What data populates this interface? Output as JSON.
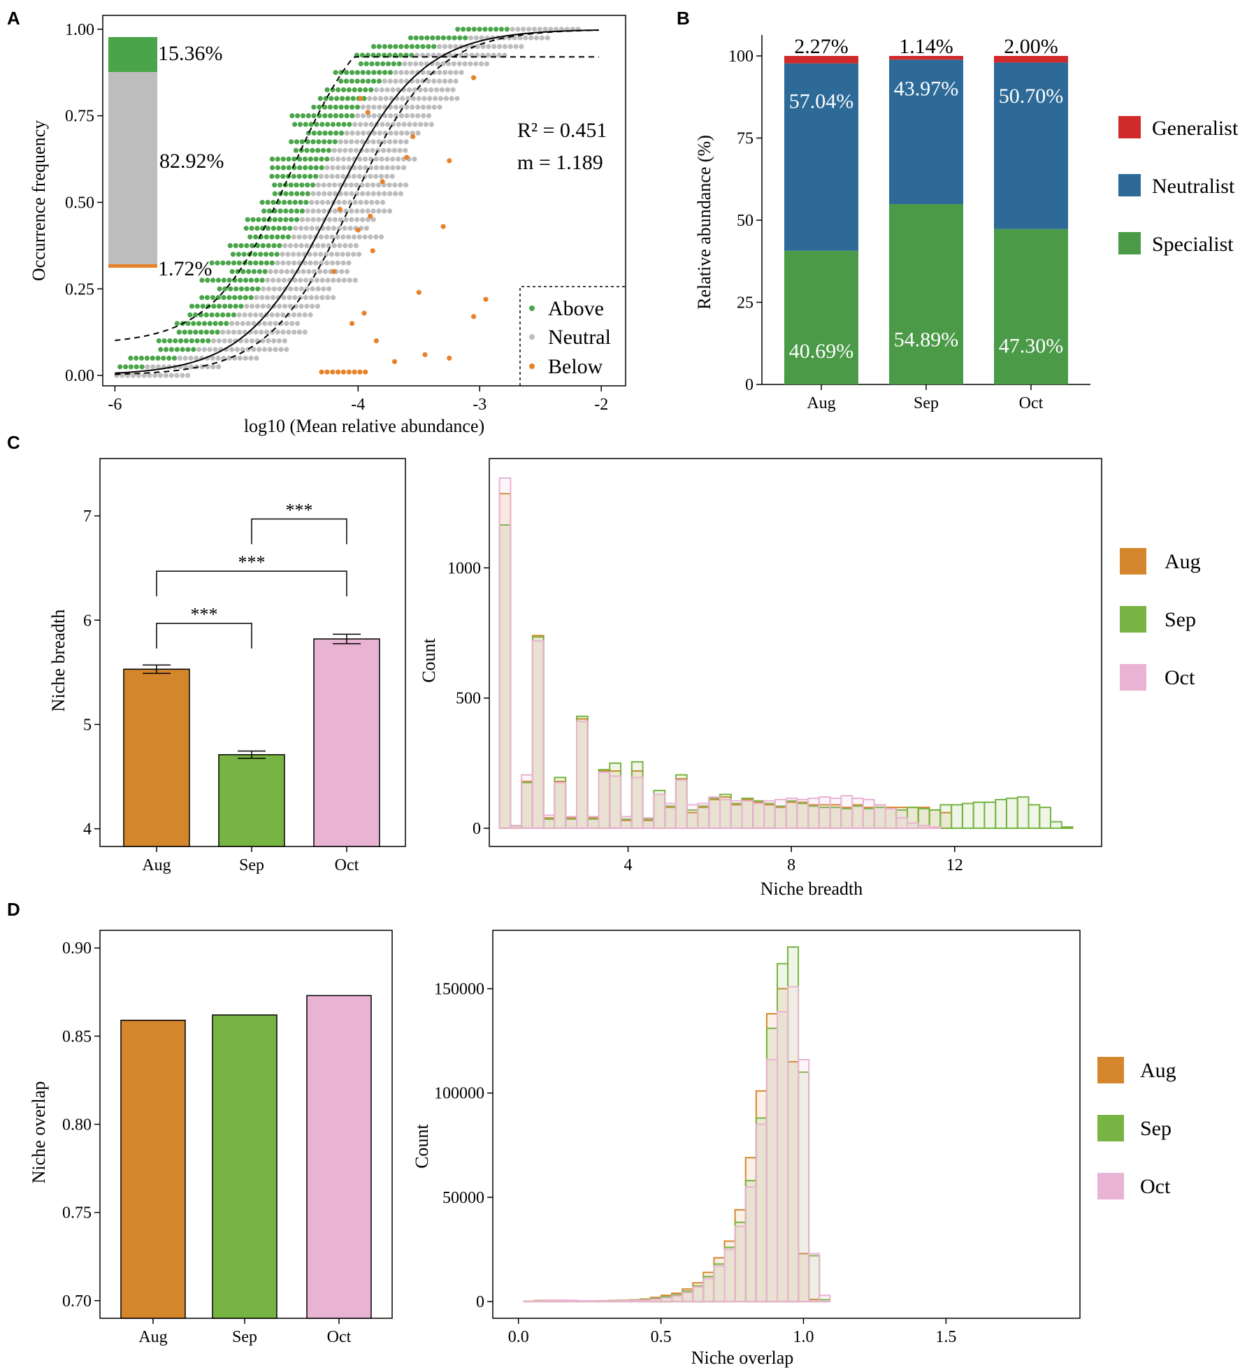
{
  "panels": {
    "a": "A",
    "b": "B",
    "c": "C",
    "d": "D"
  },
  "colors": {
    "above": "#4aa54a",
    "neutral": "#bdbdbd",
    "below": "#e8822a",
    "generalist": "#d12a2a",
    "neutralist": "#2e6a98",
    "specialist": "#4a9a48",
    "aug": "#d4862d",
    "sep": "#78b443",
    "oct": "#e9b3d3"
  },
  "chart_data": [
    {
      "id": "A",
      "type": "scatter",
      "xlabel": "log10 (Mean relative abundance)",
      "ylabel": "Occurrence frequency",
      "xlim": [
        -6.1,
        -1.8
      ],
      "ylim": [
        -0.03,
        1.04
      ],
      "x_ticks": [
        {
          "v": -6,
          "label": "-6"
        },
        {
          "v": -4,
          "label": "-4"
        },
        {
          "v": -3,
          "label": "-3"
        },
        {
          "v": -2,
          "label": "-2"
        }
      ],
      "y_ticks": [
        {
          "v": 0,
          "label": "0.00"
        },
        {
          "v": 0.25,
          "label": "0.25"
        },
        {
          "v": 0.5,
          "label": "0.50"
        },
        {
          "v": 0.75,
          "label": "0.75"
        },
        {
          "v": 1,
          "label": "1.00"
        }
      ],
      "fit": {
        "model": "sigmoid",
        "x0": -4.2,
        "scale": 0.36,
        "upper": 1.0,
        "dashed_low_x0": -4.05,
        "dashed_high_x0": -4.55,
        "dashed_high_cap": 0.92
      },
      "stats": {
        "r2": "R² = 0.451",
        "m": "m = 1.189"
      },
      "composition": [
        {
          "name": "Above",
          "value": 15.36,
          "label": "15.36%"
        },
        {
          "name": "Neutral",
          "value": 82.92,
          "label": "82.92%"
        },
        {
          "name": "Below",
          "value": 1.72,
          "label": "1.72%"
        }
      ],
      "legend": [
        "Above",
        "Neutral",
        "Below"
      ],
      "below_points": [
        [
          -3.05,
          0.86
        ],
        [
          -3.55,
          0.69
        ],
        [
          -3.25,
          0.62
        ],
        [
          -3.8,
          0.56
        ],
        [
          -3.6,
          0.63
        ],
        [
          -3.3,
          0.43
        ],
        [
          -3.5,
          0.24
        ],
        [
          -3.05,
          0.17
        ],
        [
          -2.95,
          0.22
        ],
        [
          -3.25,
          0.05
        ],
        [
          -3.7,
          0.04
        ],
        [
          -3.45,
          0.06
        ],
        [
          -3.9,
          0.46
        ],
        [
          -3.95,
          0.18
        ],
        [
          -3.85,
          0.1
        ],
        [
          -4.0,
          0.42
        ],
        [
          -3.92,
          0.76
        ],
        [
          -3.98,
          0.8
        ],
        [
          -4.15,
          0.48
        ],
        [
          -4.2,
          0.3
        ],
        [
          -4.05,
          0.15
        ],
        [
          -3.88,
          0.36
        ]
      ]
    },
    {
      "id": "B",
      "type": "bar",
      "stacked": true,
      "ylabel": "Relative abundance (%)",
      "ylim": [
        0,
        100
      ],
      "y_ticks": [
        {
          "v": 0,
          "label": "0"
        },
        {
          "v": 25,
          "label": "25"
        },
        {
          "v": 50,
          "label": "50"
        },
        {
          "v": 75,
          "label": "75"
        },
        {
          "v": 100,
          "label": "100"
        }
      ],
      "categories": [
        "Aug",
        "Sep",
        "Oct"
      ],
      "series": [
        {
          "name": "Specialist",
          "values": [
            40.69,
            54.89,
            47.3
          ],
          "labels": [
            "40.69%",
            "54.89%",
            "47.30%"
          ]
        },
        {
          "name": "Neutralist",
          "values": [
            57.04,
            43.97,
            50.7
          ],
          "labels": [
            "57.04%",
            "43.97%",
            "50.70%"
          ]
        },
        {
          "name": "Generalist",
          "values": [
            2.27,
            1.14,
            2.0
          ],
          "labels": [
            "2.27%",
            "1.14%",
            "2.00%"
          ]
        }
      ],
      "legend": [
        "Generalist",
        "Neutralist",
        "Specialist"
      ]
    },
    {
      "id": "C-left",
      "type": "bar",
      "ylabel": "Niche breadth",
      "ylim": [
        3.83,
        7.55
      ],
      "y_ticks": [
        {
          "v": 4,
          "label": "4"
        },
        {
          "v": 5,
          "label": "5"
        },
        {
          "v": 6,
          "label": "6"
        },
        {
          "v": 7,
          "label": "7"
        }
      ],
      "categories": [
        "Aug",
        "Sep",
        "Oct"
      ],
      "values": [
        5.53,
        4.71,
        5.82
      ],
      "errors": [
        0.04,
        0.035,
        0.045
      ],
      "significance": [
        {
          "from": 0,
          "to": 1,
          "label": "***",
          "y": 5.97
        },
        {
          "from": 0,
          "to": 2,
          "label": "***",
          "y": 6.47
        },
        {
          "from": 1,
          "to": 2,
          "label": "***",
          "y": 6.97
        }
      ]
    },
    {
      "id": "C-right",
      "type": "bar",
      "histogram": true,
      "xlabel": "Niche breadth",
      "ylabel": "Count",
      "xlim": [
        0.6,
        15.6
      ],
      "ylim": [
        -70,
        1420
      ],
      "bin_start": 0.85,
      "bin_width": 0.27,
      "x_ticks": [
        {
          "v": 4,
          "label": "4"
        },
        {
          "v": 8,
          "label": "8"
        },
        {
          "v": 12,
          "label": "12"
        }
      ],
      "y_ticks": [
        {
          "v": 0,
          "label": "0"
        },
        {
          "v": 500,
          "label": "500"
        },
        {
          "v": 1000,
          "label": "1000"
        }
      ],
      "series": [
        {
          "name": "Aug",
          "values": [
            1285,
            10,
            180,
            740,
            40,
            180,
            40,
            420,
            40,
            220,
            220,
            30,
            220,
            30,
            130,
            80,
            190,
            60,
            80,
            110,
            120,
            90,
            110,
            100,
            90,
            80,
            100,
            100,
            90,
            90,
            90,
            80,
            90,
            80,
            90,
            80,
            80,
            80,
            80,
            70,
            60,
            0,
            0,
            0,
            0,
            0,
            0,
            0,
            0,
            0,
            0,
            0
          ]
        },
        {
          "name": "Sep",
          "values": [
            1165,
            10,
            175,
            735,
            35,
            195,
            35,
            430,
            35,
            225,
            250,
            35,
            255,
            35,
            145,
            85,
            205,
            70,
            85,
            115,
            130,
            95,
            115,
            105,
            95,
            85,
            105,
            95,
            85,
            80,
            80,
            75,
            85,
            75,
            80,
            75,
            70,
            80,
            75,
            70,
            90,
            90,
            95,
            100,
            100,
            110,
            115,
            120,
            90,
            80,
            25,
            5
          ]
        },
        {
          "name": "Oct",
          "values": [
            1345,
            10,
            205,
            720,
            50,
            175,
            45,
            410,
            45,
            215,
            200,
            45,
            195,
            40,
            130,
            95,
            185,
            90,
            95,
            120,
            110,
            105,
            105,
            95,
            105,
            110,
            115,
            110,
            115,
            120,
            115,
            125,
            115,
            110,
            90,
            75,
            40,
            20,
            10,
            5,
            0,
            0,
            0,
            0,
            0,
            0,
            0,
            0,
            0,
            0,
            0,
            0
          ]
        }
      ],
      "legend": [
        "Aug",
        "Sep",
        "Oct"
      ]
    },
    {
      "id": "D-left",
      "type": "bar",
      "ylabel": "Niche overlap",
      "ylim": [
        0.69,
        0.91
      ],
      "y_ticks": [
        {
          "v": 0.7,
          "label": "0.70"
        },
        {
          "v": 0.75,
          "label": "0.75"
        },
        {
          "v": 0.8,
          "label": "0.80"
        },
        {
          "v": 0.85,
          "label": "0.85"
        },
        {
          "v": 0.9,
          "label": "0.90"
        }
      ],
      "categories": [
        "Aug",
        "Sep",
        "Oct"
      ],
      "values": [
        0.859,
        0.862,
        0.873
      ]
    },
    {
      "id": "D-right",
      "type": "bar",
      "histogram": true,
      "xlabel": "Niche overlap",
      "ylabel": "Count",
      "xlim": [
        -0.09,
        1.97
      ],
      "ylim": [
        -8000,
        178000
      ],
      "bin_start": 0.02,
      "bin_width": 0.037,
      "x_ticks": [
        {
          "v": 0.0,
          "label": "0.0"
        },
        {
          "v": 0.5,
          "label": "0.5"
        },
        {
          "v": 1.0,
          "label": "1.0"
        },
        {
          "v": 1.5,
          "label": "1.5"
        }
      ],
      "y_ticks": [
        {
          "v": 0,
          "label": "0"
        },
        {
          "v": 50000,
          "label": "50000"
        },
        {
          "v": 100000,
          "label": "100000"
        },
        {
          "v": 150000,
          "label": "150000"
        }
      ],
      "series": [
        {
          "name": "Aug",
          "values": [
            200,
            500,
            600,
            500,
            400,
            300,
            300,
            400,
            500,
            600,
            800,
            1200,
            2000,
            3000,
            4000,
            6000,
            9000,
            14000,
            21000,
            29000,
            44000,
            69000,
            101000,
            138000,
            150000,
            115000,
            23000,
            1000,
            0
          ]
        },
        {
          "name": "Sep",
          "values": [
            150,
            400,
            500,
            400,
            300,
            250,
            250,
            300,
            400,
            500,
            600,
            900,
            1500,
            2300,
            3200,
            5000,
            7500,
            12000,
            18000,
            26000,
            38000,
            58000,
            88000,
            131000,
            162000,
            170000,
            110000,
            22000,
            900
          ]
        },
        {
          "name": "Oct",
          "values": [
            100,
            300,
            500,
            700,
            600,
            400,
            300,
            300,
            300,
            400,
            500,
            700,
            1100,
            1800,
            2700,
            4300,
            7000,
            11000,
            17000,
            25000,
            36000,
            55000,
            85000,
            116000,
            139000,
            151000,
            116000,
            23000,
            3000
          ]
        }
      ],
      "legend": [
        "Aug",
        "Sep",
        "Oct"
      ]
    }
  ]
}
